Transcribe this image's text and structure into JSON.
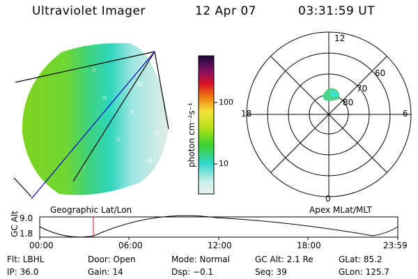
{
  "header": {
    "title": "Ultraviolet Imager",
    "date": "12 Apr 07",
    "time": "03:31:59 UT"
  },
  "colorbar": {
    "unit_label": "photon cm⁻²s⁻¹",
    "tick_labels": [
      "100",
      "10"
    ]
  },
  "polar_plot": {
    "mlt_labels": [
      "12",
      "18",
      "6",
      "0"
    ],
    "mlat_labels": [
      "60",
      "70",
      "80"
    ]
  },
  "orbit_panel": {
    "left_title": "Geographic Lat/Lon",
    "right_title": "Apex MLat/MLT",
    "y_axis_label": "GC Alt",
    "y_ticks": [
      "9.0",
      "1.8"
    ],
    "x_ticks": [
      "00:00",
      "06:00",
      "12:00",
      "18:00",
      "23:59"
    ]
  },
  "status": {
    "filter": "Flt: LBHL",
    "door": "Door: Open",
    "mode": "Mode: Normal",
    "gc_alt": "GC Alt: 2.1 Re",
    "glat": "GLat:  85.2",
    "ip": "IP: 36.0",
    "gain": "Gain: 14",
    "dsp": "Dsp:   −0.1",
    "seq": "Seq: 39",
    "glon": "GLon: 125.7"
  }
}
